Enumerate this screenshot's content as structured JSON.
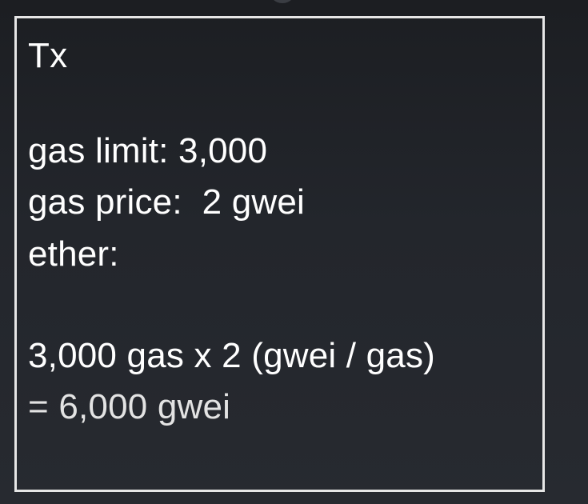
{
  "tx_box": {
    "title": "Tx",
    "gas_limit": "gas limit: 3,000",
    "gas_price": "gas price:  2 gwei",
    "ether": "ether:",
    "calc_line_1": "3,000 gas x 2 (gwei / gas)",
    "calc_line_2": "= 6,000 gwei"
  }
}
